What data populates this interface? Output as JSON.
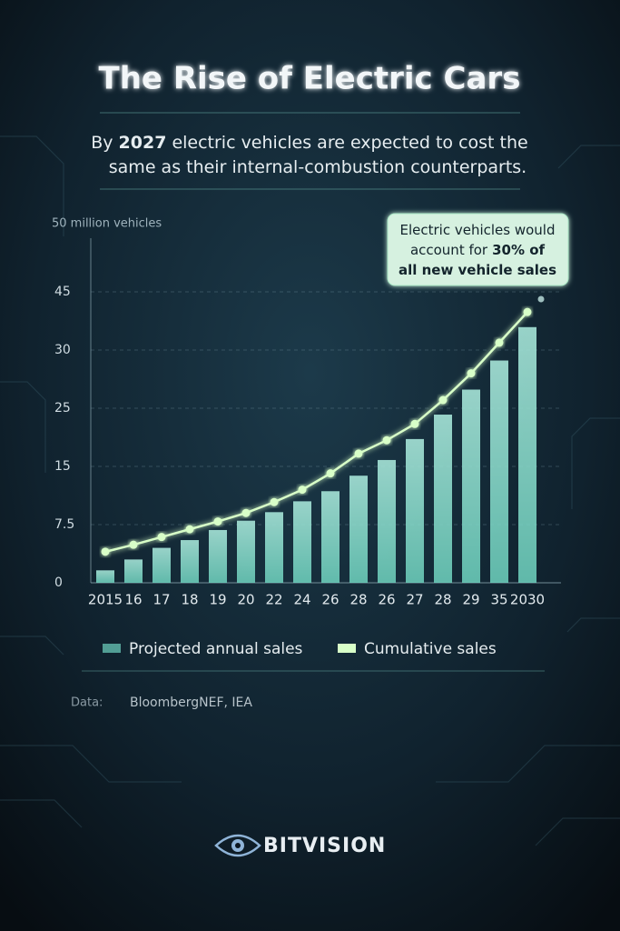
{
  "title": "The Rise of Electric Cars",
  "subtitle_lines": [
    [
      "By",
      "2027",
      "electric vehicles are expected to cost the"
    ],
    [
      "same as their internal-combustion counterparts."
    ]
  ],
  "chart_data": {
    "type": "bar",
    "y_axis_label": "50 million vehicles",
    "categories": [
      "2015",
      "16",
      "17",
      "18",
      "19",
      "20",
      "22",
      "24",
      "26",
      "28",
      "26",
      "27",
      "28",
      "29",
      "35",
      "2030"
    ],
    "yticks": [
      0,
      7.5,
      15,
      25,
      30,
      45
    ],
    "grid": true,
    "series": [
      {
        "name": "Projected annual sales",
        "type": "bar",
        "color": "#6fd3c0",
        "values": [
          1.6,
          3.0,
          4.5,
          5.5,
          6.8,
          8.0,
          9.1,
          10.5,
          11.8,
          13.8,
          16.1,
          19.7,
          23.9,
          26.6,
          29.1,
          35.9
        ]
      },
      {
        "name": "Cumulative sales",
        "type": "line",
        "color": "#d8ffc8",
        "values": [
          4.0,
          4.9,
          5.9,
          6.9,
          7.9,
          9.0,
          10.4,
          12.0,
          14.1,
          17.2,
          19.5,
          22.3,
          25.7,
          28.0,
          31.9,
          39.8
        ]
      }
    ],
    "annotation_lines": [
      [
        {
          "text": "Electric vehicles would",
          "bold": false
        }
      ],
      [
        {
          "text": "account for",
          "bold": false
        },
        {
          "text": "30% of",
          "bold": true
        }
      ],
      [
        {
          "text": "all new vehicle sales",
          "bold": true
        }
      ]
    ]
  },
  "source": {
    "label": "Data:",
    "text": "BloombergNEF, IEA"
  },
  "brand": "BITVISION"
}
